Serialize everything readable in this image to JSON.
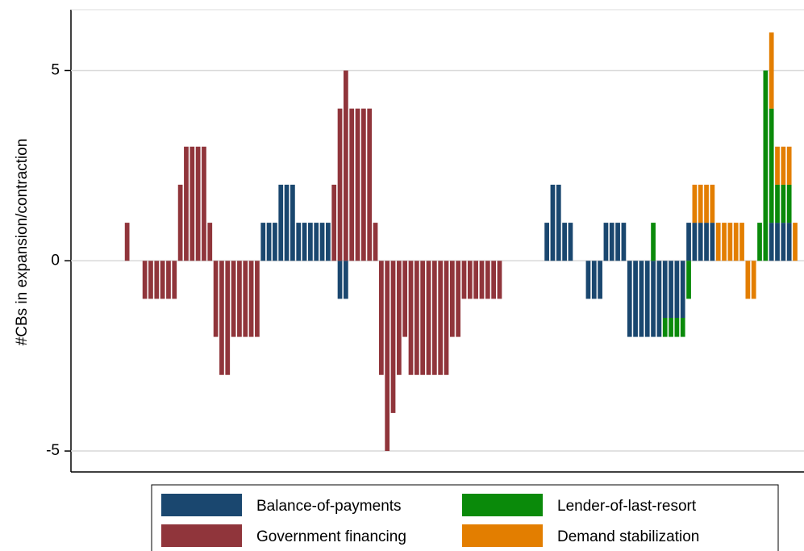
{
  "chart_data": {
    "type": "bar",
    "stacked": true,
    "y_label": "#CBs in expansion/contraction",
    "ylim": [
      -5.55,
      6.6
    ],
    "yticks": [
      -5,
      0,
      5
    ],
    "grid": true,
    "legend": "bottom",
    "categories": [
      null,
      null,
      null,
      null,
      null,
      null,
      null,
      null,
      null,
      null,
      null,
      null,
      null,
      null,
      null,
      null,
      null,
      null,
      null,
      null,
      null,
      null,
      null,
      null,
      null,
      null,
      null,
      null,
      null,
      null,
      null,
      null,
      null,
      null,
      null,
      null,
      null,
      null,
      null,
      null,
      null,
      null,
      null,
      null,
      null,
      null,
      null,
      null,
      null,
      null,
      null,
      null,
      null,
      null,
      null,
      null,
      null,
      null,
      null,
      null,
      null,
      null,
      null,
      null,
      null,
      null,
      null,
      null,
      null,
      null,
      null,
      null,
      null,
      null,
      null,
      null,
      null,
      null,
      null,
      null,
      null,
      null,
      null,
      null,
      null,
      null,
      null,
      null,
      null,
      null,
      null,
      null,
      null,
      null,
      null,
      null,
      null,
      null,
      null,
      null,
      null,
      null,
      null,
      null,
      null,
      null,
      null,
      null,
      null,
      null,
      null,
      null,
      null,
      null,
      null,
      null,
      null,
      null,
      null,
      null,
      null,
      null,
      null,
      null
    ],
    "series": [
      {
        "name": "Balance-of-payments",
        "color": "#1a476f",
        "values": [
          0,
          0,
          0,
          0,
          0,
          0,
          0,
          0,
          0,
          0,
          0,
          0,
          0,
          0,
          0,
          0,
          0,
          0,
          0,
          0,
          0,
          0,
          0,
          0,
          0,
          0,
          0,
          0,
          0,
          0,
          0,
          0,
          1,
          1,
          1,
          2,
          2,
          2,
          1,
          1,
          1,
          1,
          1,
          1,
          0,
          -1,
          -1,
          0,
          0,
          0,
          0,
          0,
          0,
          0,
          0,
          0,
          0,
          0,
          0,
          0,
          0,
          0,
          0,
          0,
          0,
          0,
          0,
          0,
          0,
          0,
          0,
          0,
          0,
          0,
          0,
          0,
          0,
          0,
          0,
          0,
          1,
          2,
          2,
          1,
          1,
          0,
          0,
          -1,
          -1,
          -1,
          1,
          1,
          1,
          1,
          -2,
          -2,
          -2,
          -2,
          -2,
          -2,
          -1.5,
          -1.5,
          -1.5,
          -1.5,
          1,
          1,
          1,
          1,
          1,
          0,
          0,
          0,
          0,
          0,
          0,
          0,
          0,
          0,
          1,
          1,
          1,
          1,
          0,
          0
        ]
      },
      {
        "name": "Government financing",
        "color": "#90353b",
        "values": [
          0,
          0,
          0,
          0,
          0,
          0,
          0,
          0,
          0,
          1,
          0,
          0,
          -1,
          -1,
          -1,
          -1,
          -1,
          -1,
          2,
          3,
          3,
          3,
          3,
          1,
          -2,
          -3,
          -3,
          -2,
          -2,
          -2,
          -2,
          -2,
          0,
          0,
          0,
          0,
          0,
          0,
          0,
          0,
          0,
          0,
          0,
          0,
          2,
          4,
          5,
          4,
          4,
          4,
          4,
          1,
          -3,
          -5,
          -4,
          -3,
          -2,
          -3,
          -3,
          -3,
          -3,
          -3,
          -3,
          -3,
          -2,
          -2,
          -1,
          -1,
          -1,
          -1,
          -1,
          -1,
          -1,
          0,
          0,
          0,
          0,
          0,
          0,
          0,
          0,
          0,
          0,
          0,
          0,
          0,
          0,
          0,
          0,
          0,
          0,
          0,
          0,
          0,
          0,
          0,
          0,
          0,
          0,
          0,
          0,
          0,
          0,
          0,
          0,
          0,
          0,
          0,
          0,
          0,
          0,
          0,
          0,
          0,
          0,
          0,
          0,
          0,
          0,
          0,
          0,
          0,
          0,
          0
        ]
      },
      {
        "name": "Lender-of-last-resort",
        "color": "#0a8a0a",
        "values": [
          0,
          0,
          0,
          0,
          0,
          0,
          0,
          0,
          0,
          0,
          0,
          0,
          0,
          0,
          0,
          0,
          0,
          0,
          0,
          0,
          0,
          0,
          0,
          0,
          0,
          0,
          0,
          0,
          0,
          0,
          0,
          0,
          0,
          0,
          0,
          0,
          0,
          0,
          0,
          0,
          0,
          0,
          0,
          0,
          0,
          0,
          0,
          0,
          0,
          0,
          0,
          0,
          0,
          0,
          0,
          0,
          0,
          0,
          0,
          0,
          0,
          0,
          0,
          0,
          0,
          0,
          0,
          0,
          0,
          0,
          0,
          0,
          0,
          0,
          0,
          0,
          0,
          0,
          0,
          0,
          0,
          0,
          0,
          0,
          0,
          0,
          0,
          0,
          0,
          0,
          0,
          0,
          0,
          0,
          0,
          0,
          0,
          0,
          1,
          0,
          -0.5,
          -0.5,
          -0.5,
          -0.5,
          -1,
          0,
          0,
          0,
          0,
          0,
          0,
          0,
          0,
          0,
          0,
          0,
          1,
          5,
          3,
          1,
          1,
          1,
          0,
          0
        ]
      },
      {
        "name": "Demand stabilization",
        "color": "#e37e00",
        "values": [
          0,
          0,
          0,
          0,
          0,
          0,
          0,
          0,
          0,
          0,
          0,
          0,
          0,
          0,
          0,
          0,
          0,
          0,
          0,
          0,
          0,
          0,
          0,
          0,
          0,
          0,
          0,
          0,
          0,
          0,
          0,
          0,
          0,
          0,
          0,
          0,
          0,
          0,
          0,
          0,
          0,
          0,
          0,
          0,
          0,
          0,
          0,
          0,
          0,
          0,
          0,
          0,
          0,
          0,
          0,
          0,
          0,
          0,
          0,
          0,
          0,
          0,
          0,
          0,
          0,
          0,
          0,
          0,
          0,
          0,
          0,
          0,
          0,
          0,
          0,
          0,
          0,
          0,
          0,
          0,
          0,
          0,
          0,
          0,
          0,
          0,
          0,
          0,
          0,
          0,
          0,
          0,
          0,
          0,
          0,
          0,
          0,
          0,
          0,
          0,
          0,
          0,
          0,
          0,
          0,
          1,
          1,
          1,
          1,
          1,
          1,
          1,
          1,
          1,
          -1,
          -1,
          0,
          0,
          2,
          1,
          1,
          1,
          1,
          0
        ]
      }
    ]
  }
}
